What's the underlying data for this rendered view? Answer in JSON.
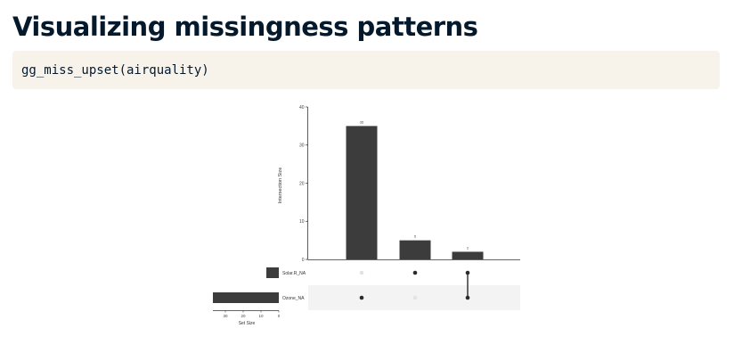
{
  "slide": {
    "title": "Visualizing missingness patterns",
    "code": "gg_miss_upset(airquality)"
  },
  "chart_data": {
    "type": "bar",
    "subtype": "upset",
    "ylabel": "Intersection Size",
    "ylim": [
      0,
      40
    ],
    "yticks": [
      0,
      10,
      20,
      30,
      40
    ],
    "intersections": [
      {
        "sets": [
          "Ozone_NA"
        ],
        "value": 35,
        "label": "35"
      },
      {
        "sets": [
          "Solar.R_NA"
        ],
        "value": 5,
        "label": "5"
      },
      {
        "sets": [
          "Solar.R_NA",
          "Ozone_NA"
        ],
        "value": 2,
        "label": "2"
      }
    ],
    "sets": [
      {
        "name": "Solar.R_NA",
        "size": 7
      },
      {
        "name": "Ozone_NA",
        "size": 37
      }
    ],
    "set_size_label": "Set Size",
    "set_size_ticks": [
      30,
      20,
      10,
      0
    ],
    "set_size_lim": [
      0,
      40
    ],
    "colors": {
      "bar": "#3c3c3c",
      "dot_active": "#2b2b2b",
      "dot_inactive": "#e3e3e3",
      "row_shade": "#f3f3f3",
      "axis": "#333333"
    }
  }
}
